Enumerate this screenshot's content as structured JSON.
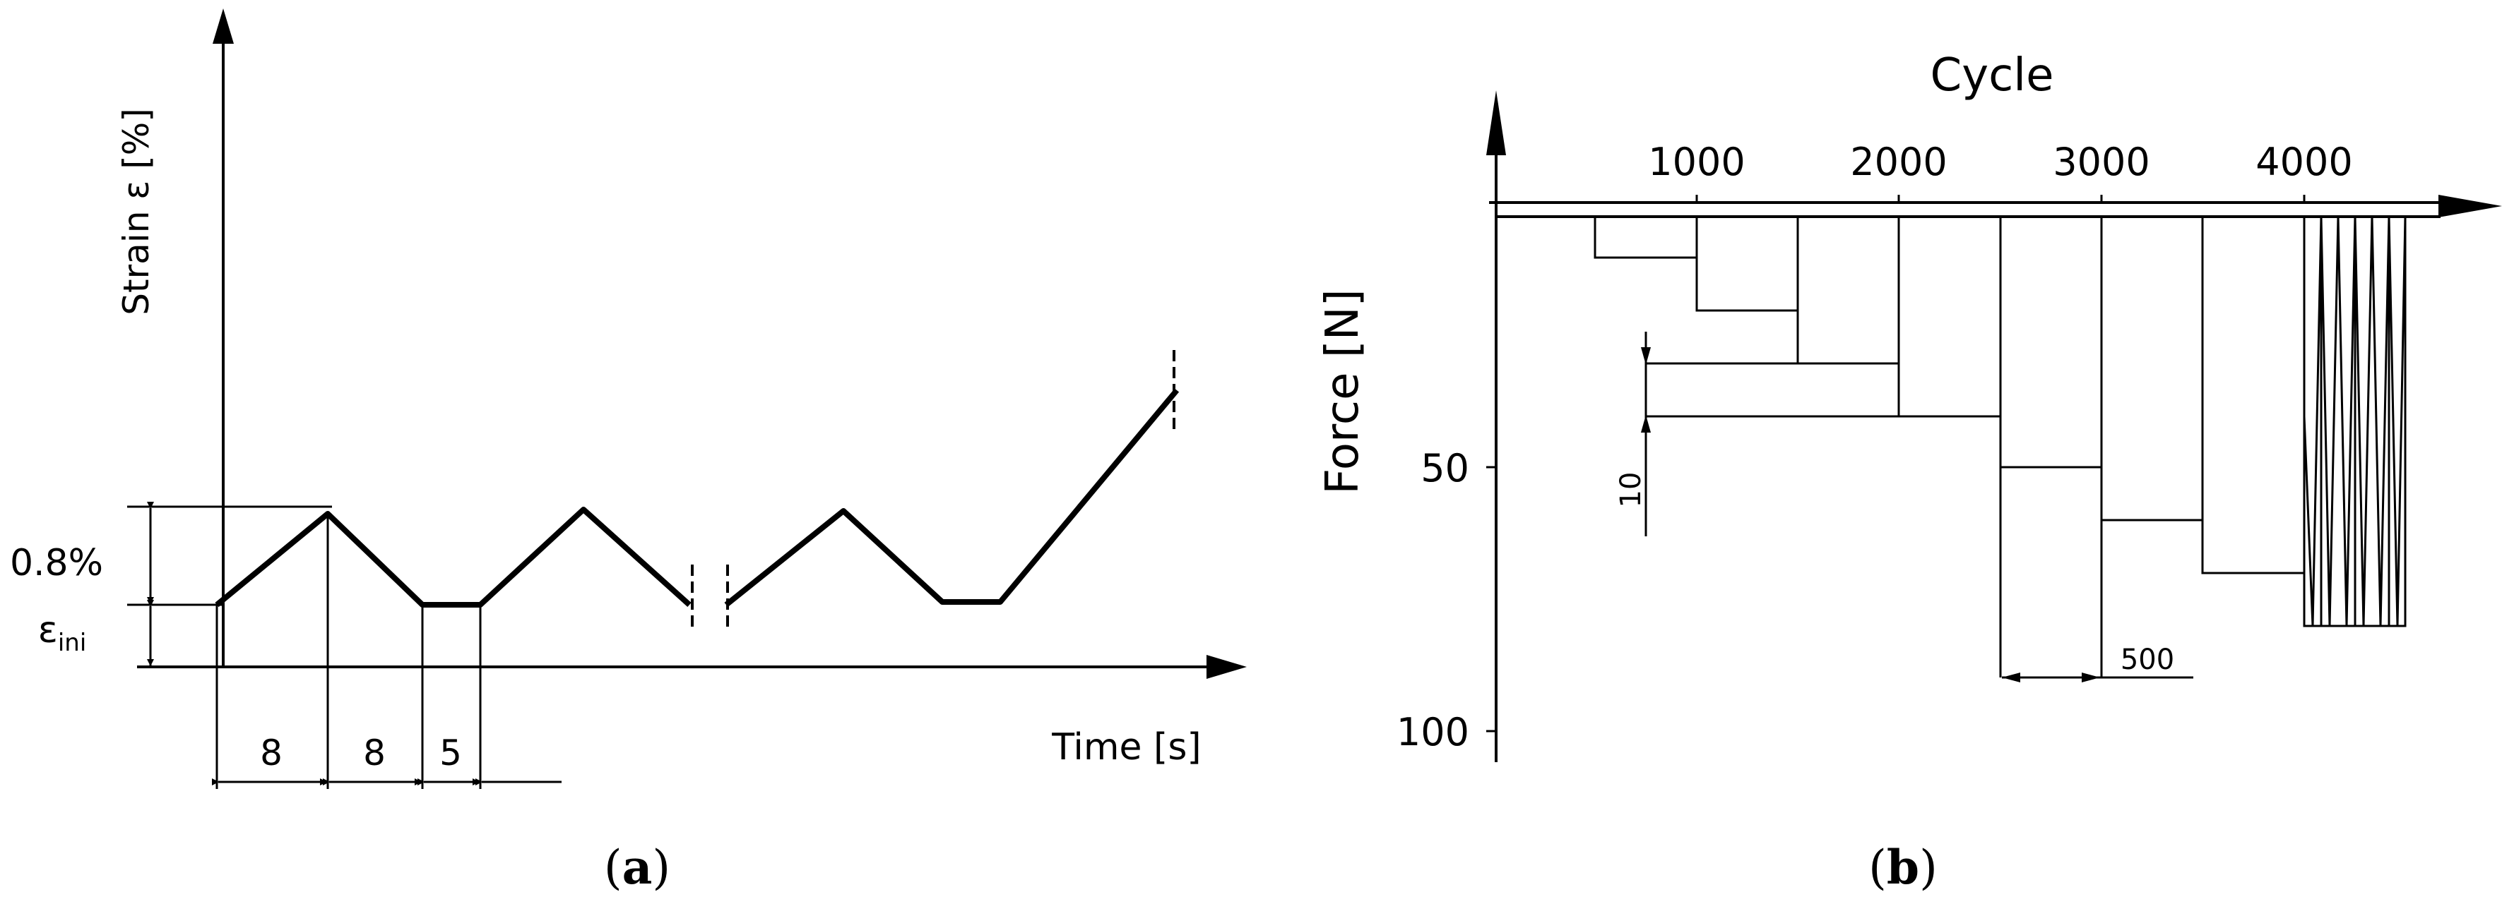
{
  "panel_a": {
    "y_axis_label": "Strain ε [%]",
    "x_axis_label": "Time [s]",
    "amplitude_label": "0.8%",
    "initial_strain_symbol": "ε",
    "initial_strain_subscript": "ini",
    "durations": [
      "8",
      "8",
      "5"
    ],
    "caption_open": "(",
    "caption_letter": "a",
    "caption_close": ")"
  },
  "panel_b": {
    "x_axis_title": "Cycle",
    "x_ticks": [
      "1000",
      "2000",
      "3000",
      "4000"
    ],
    "y_axis_label": "Force  [N]",
    "y_ticks": [
      "50",
      "100"
    ],
    "force_step_label": "10",
    "cycle_step_label": "500",
    "caption_open": "(",
    "caption_letter": "b",
    "caption_close": ")"
  }
}
